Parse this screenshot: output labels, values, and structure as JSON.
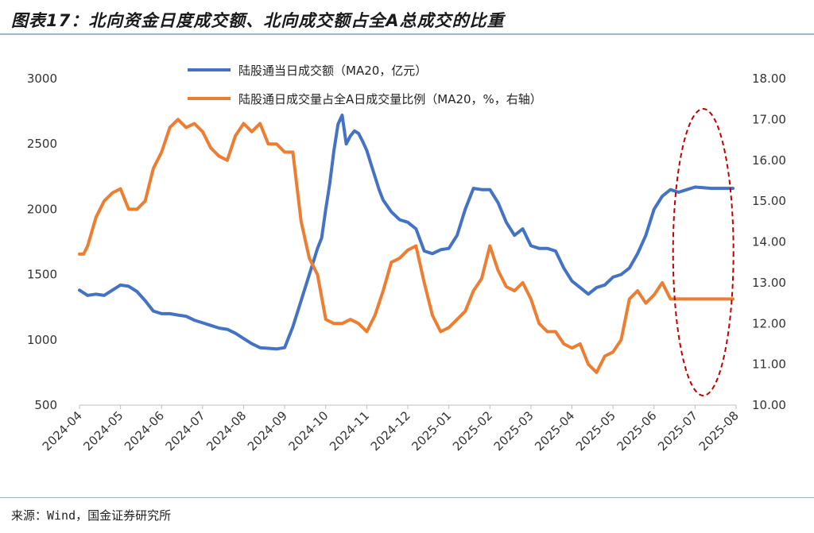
{
  "title": "图表17：北向资金日度成交额、北向成交额占全A总成交的比重",
  "source": "来源：Wind，国金证券研究所",
  "chart_data": {
    "type": "line",
    "x_ticks": [
      "2024-04",
      "2024-05",
      "2024-06",
      "2024-07",
      "2024-08",
      "2024-09",
      "2024-10",
      "2024-11",
      "2024-12",
      "2025-01",
      "2025-02",
      "2025-03",
      "2025-04",
      "2025-05",
      "2025-06",
      "2025-07",
      "2025-08"
    ],
    "y_left": {
      "range": [
        500,
        3000
      ],
      "ticks": [
        "500",
        "1000",
        "1500",
        "2000",
        "2500",
        "3000"
      ]
    },
    "y_right": {
      "range": [
        10,
        18
      ],
      "ticks": [
        "10.00",
        "11.00",
        "12.00",
        "13.00",
        "14.00",
        "15.00",
        "16.00",
        "17.00",
        "18.00"
      ]
    },
    "x_range": [
      0,
      16
    ],
    "grid": false,
    "legend_position": "top-center",
    "series": [
      {
        "name": "陆股通当日成交额（MA20，亿元）",
        "axis": "left",
        "color": "#4472c4",
        "x": [
          0,
          0.2,
          0.4,
          0.6,
          0.8,
          1.0,
          1.2,
          1.4,
          1.6,
          1.8,
          2.0,
          2.2,
          2.4,
          2.6,
          2.8,
          3.0,
          3.2,
          3.4,
          3.6,
          3.8,
          4.0,
          4.2,
          4.4,
          4.6,
          4.8,
          5.0,
          5.2,
          5.4,
          5.6,
          5.7,
          5.8,
          5.9,
          6.0,
          6.1,
          6.2,
          6.3,
          6.4,
          6.5,
          6.6,
          6.7,
          6.8,
          6.9,
          7.0,
          7.1,
          7.2,
          7.3,
          7.4,
          7.6,
          7.8,
          8.0,
          8.2,
          8.4,
          8.6,
          8.8,
          9.0,
          9.2,
          9.4,
          9.6,
          9.8,
          10.0,
          10.2,
          10.4,
          10.6,
          10.8,
          11.0,
          11.2,
          11.4,
          11.6,
          11.8,
          12.0,
          12.2,
          12.4,
          12.6,
          12.8,
          13.0,
          13.2,
          13.4,
          13.6,
          13.8,
          14.0,
          14.2,
          14.4,
          14.6,
          14.8,
          15.0,
          15.2,
          15.4,
          15.6,
          15.8,
          16.0
        ],
        "y": [
          1380,
          1340,
          1350,
          1340,
          1380,
          1420,
          1410,
          1370,
          1300,
          1220,
          1200,
          1200,
          1190,
          1180,
          1150,
          1130,
          1110,
          1090,
          1080,
          1050,
          1010,
          970,
          940,
          935,
          930,
          940,
          1100,
          1300,
          1500,
          1600,
          1700,
          1780,
          2000,
          2200,
          2450,
          2650,
          2720,
          2500,
          2560,
          2600,
          2580,
          2520,
          2450,
          2350,
          2250,
          2150,
          2070,
          1980,
          1920,
          1900,
          1850,
          1680,
          1660,
          1690,
          1700,
          1800,
          2000,
          2160,
          2150,
          2150,
          2050,
          1900,
          1800,
          1850,
          1720,
          1700,
          1700,
          1680,
          1550,
          1450,
          1400,
          1350,
          1400,
          1420,
          1480,
          1500,
          1550,
          1660,
          1800,
          2000,
          2100,
          2150,
          2130,
          2150,
          2170,
          2165,
          2160,
          2160,
          2160,
          2160
        ],
        "x_note": "last samples capped at chart end"
      },
      {
        "name": "陆股通日成交量占全A日成交量比例（MA20，%，右轴）",
        "axis": "right",
        "color": "#ed7d31",
        "x": [
          0,
          0.1,
          0.2,
          0.4,
          0.6,
          0.8,
          1.0,
          1.2,
          1.4,
          1.6,
          1.8,
          2.0,
          2.2,
          2.4,
          2.6,
          2.8,
          3.0,
          3.2,
          3.4,
          3.6,
          3.8,
          4.0,
          4.2,
          4.4,
          4.6,
          4.8,
          5.0,
          5.2,
          5.4,
          5.6,
          5.8,
          6.0,
          6.2,
          6.4,
          6.6,
          6.8,
          7.0,
          7.2,
          7.4,
          7.6,
          7.8,
          8.0,
          8.2,
          8.4,
          8.6,
          8.8,
          9.0,
          9.2,
          9.4,
          9.6,
          9.8,
          10.0,
          10.2,
          10.4,
          10.6,
          10.8,
          11.0,
          11.2,
          11.4,
          11.6,
          11.8,
          12.0,
          12.2,
          12.4,
          12.6,
          12.8,
          13.0,
          13.2,
          13.4,
          13.6,
          13.8,
          14.0,
          14.2,
          14.4,
          14.6,
          14.8,
          15.0,
          15.2,
          15.4,
          15.6,
          15.8,
          16.0
        ],
        "y": [
          13.7,
          13.7,
          13.9,
          14.6,
          15.0,
          15.2,
          15.3,
          14.8,
          14.8,
          15.0,
          15.8,
          16.2,
          16.8,
          17.0,
          16.8,
          16.9,
          16.7,
          16.3,
          16.1,
          16.0,
          16.6,
          16.9,
          16.7,
          16.9,
          16.4,
          16.4,
          16.2,
          16.2,
          14.5,
          13.6,
          13.2,
          12.1,
          12.0,
          12.0,
          12.1,
          12.0,
          11.8,
          12.2,
          12.8,
          13.5,
          13.6,
          13.8,
          13.9,
          13.0,
          12.2,
          11.8,
          11.9,
          12.1,
          12.3,
          12.8,
          13.1,
          13.9,
          13.3,
          12.9,
          12.8,
          13.0,
          12.6,
          12.0,
          11.8,
          11.8,
          11.5,
          11.4,
          11.5,
          11.0,
          10.8,
          11.2,
          11.3,
          11.6,
          12.6,
          12.8,
          12.5,
          12.7,
          13.0,
          12.6,
          12.6,
          12.6,
          12.6,
          12.6,
          12.6,
          12.6,
          12.6,
          12.6
        ]
      }
    ],
    "annotation": {
      "shape": "dashed-ellipse",
      "color": "#c00000",
      "x_center": 15.2,
      "y_left_top": 2720,
      "y_left_bottom": 500
    }
  }
}
